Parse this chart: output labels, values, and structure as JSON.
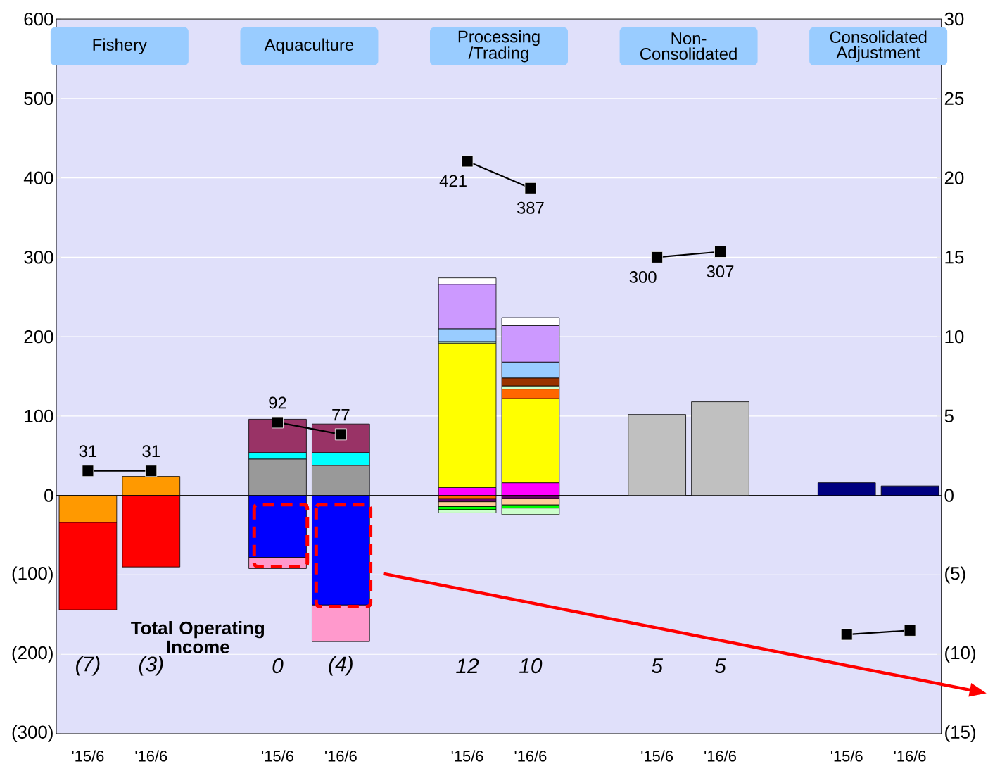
{
  "chart_data": {
    "type": "bar",
    "stacked": true,
    "grid": "y",
    "legend": false,
    "categories": [
      "'15/6",
      "'16/6",
      "'15/6",
      "'16/6",
      "'15/6",
      "'16/6",
      "'15/6",
      "'16/6",
      "'15/6",
      "'16/6"
    ],
    "ylim": [
      -300,
      600
    ],
    "yticks": [
      600,
      500,
      400,
      300,
      200,
      100,
      0,
      {
        "value": -100,
        "label": "(100)"
      },
      {
        "value": -200,
        "label": "(200)"
      },
      {
        "value": -300,
        "label": "(300)"
      }
    ],
    "y2lim": [
      -15,
      30
    ],
    "y2ticks": [
      30,
      25,
      20,
      15,
      10,
      5,
      0,
      {
        "value": -5,
        "label": "(5)"
      },
      {
        "value": -10,
        "label": "(10)"
      },
      {
        "value": -15,
        "label": "(15)"
      }
    ],
    "annotations": [
      "Fishery",
      "Aquaculture",
      "Processing /Trading",
      "Non-Consolidated",
      "Consolidated Adjustment",
      "Total Operating Income",
      "(7)",
      "(3)",
      "0",
      "(4)",
      "12",
      "10",
      "5",
      "5"
    ],
    "series": [
      {
        "axis": "y2",
        "color": "#ff9900",
        "values": [
          -1.7,
          1.2,
          null,
          null,
          null,
          null,
          null,
          null,
          null,
          null
        ]
      },
      {
        "axis": "y2",
        "color": "#ff0000",
        "values": [
          -5.5,
          -4.5,
          null,
          null,
          null,
          null,
          null,
          null,
          null,
          null
        ]
      },
      {
        "axis": "y2",
        "color": "#999999",
        "values": [
          null,
          null,
          2.3,
          1.9,
          null,
          null,
          null,
          null,
          null,
          null
        ]
      },
      {
        "axis": "y2",
        "color": "#00ffff",
        "values": [
          null,
          null,
          0.4,
          0.8,
          null,
          null,
          null,
          null,
          null,
          null
        ]
      },
      {
        "axis": "y2",
        "color": "#993366",
        "values": [
          null,
          null,
          2.1,
          1.8,
          null,
          null,
          null,
          null,
          null,
          null
        ]
      },
      {
        "axis": "y2",
        "color": "#0000ff",
        "values": [
          null,
          null,
          -3.9,
          -6.9,
          null,
          null,
          null,
          null,
          null,
          null
        ]
      },
      {
        "axis": "y2",
        "color": "#ff99cc",
        "values": [
          null,
          null,
          -0.7,
          -2.3,
          null,
          null,
          null,
          null,
          null,
          null
        ]
      },
      {
        "axis": "y2",
        "color": "#ff00ff",
        "values": [
          null,
          null,
          null,
          null,
          0.5,
          0.8,
          null,
          null,
          null,
          null
        ]
      },
      {
        "axis": "y2",
        "color": "#ffff00",
        "values": [
          null,
          null,
          null,
          null,
          9.1,
          5.3,
          null,
          null,
          null,
          null
        ]
      },
      {
        "axis": "y2",
        "color": "#ff6600",
        "values": [
          null,
          null,
          null,
          null,
          -0.2,
          0.6,
          null,
          null,
          null,
          null
        ]
      },
      {
        "axis": "y2",
        "color": "#ccffcc",
        "values": [
          null,
          null,
          null,
          null,
          0.1,
          0.2,
          null,
          null,
          null,
          null
        ]
      },
      {
        "axis": "y2",
        "color": "#993300",
        "values": [
          null,
          null,
          null,
          null,
          null,
          0.5,
          null,
          null,
          null,
          null
        ]
      },
      {
        "axis": "y2",
        "color": "#99ccff",
        "values": [
          null,
          null,
          null,
          null,
          0.8,
          1.0,
          null,
          null,
          null,
          null
        ]
      },
      {
        "axis": "y2",
        "color": "#cc99ff",
        "values": [
          null,
          null,
          null,
          null,
          2.8,
          2.3,
          null,
          null,
          null,
          null
        ]
      },
      {
        "axis": "y2",
        "color": "#ffffff",
        "values": [
          null,
          null,
          null,
          null,
          0.4,
          0.5,
          null,
          null,
          null,
          null
        ]
      },
      {
        "axis": "y2",
        "color": "#660066",
        "values": [
          null,
          null,
          null,
          null,
          -0.2,
          -0.2,
          null,
          null,
          null,
          null
        ]
      },
      {
        "axis": "y2",
        "color": "#ffcc99",
        "values": [
          null,
          null,
          null,
          null,
          -0.3,
          -0.4,
          null,
          null,
          null,
          null
        ]
      },
      {
        "axis": "y2",
        "color": "#00ff00",
        "values": [
          null,
          null,
          null,
          null,
          -0.2,
          -0.2,
          null,
          null,
          null,
          null
        ]
      },
      {
        "axis": "y2",
        "color": "#ccffcc",
        "values": [
          null,
          null,
          null,
          null,
          -0.2,
          -0.4,
          null,
          null,
          null,
          null
        ]
      },
      {
        "axis": "y2",
        "color": "#c0c0c0",
        "values": [
          null,
          null,
          null,
          null,
          null,
          null,
          5.1,
          5.9,
          null,
          null
        ]
      },
      {
        "axis": "y2",
        "color": "#000080",
        "values": [
          null,
          null,
          null,
          null,
          null,
          null,
          null,
          null,
          0.8,
          0.6
        ]
      },
      {
        "type": "line",
        "axis": "y",
        "color": "#000000",
        "marker": "square",
        "line_style": "solid",
        "values": [
          31,
          31,
          92,
          77,
          421,
          387,
          300,
          307,
          -175,
          -170
        ],
        "value_labels": [
          "31",
          "31",
          "92",
          "77",
          "421",
          "387",
          "300",
          "307",
          null,
          null
        ]
      }
    ]
  }
}
